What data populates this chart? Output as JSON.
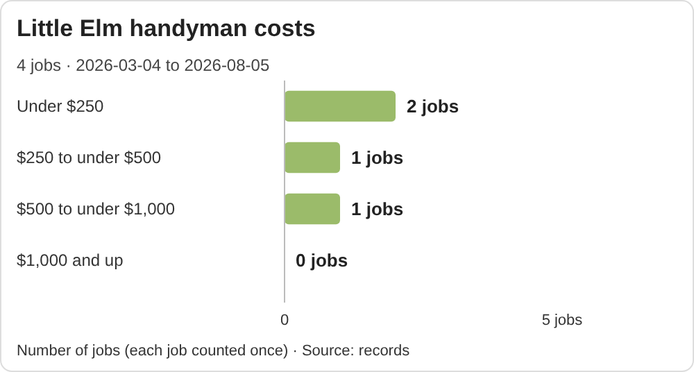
{
  "chart_data": {
    "type": "bar",
    "orientation": "horizontal",
    "title": "Little Elm handyman costs",
    "subtitle": "4 jobs · 2026-03-04 to 2026-08-05",
    "categories": [
      "Under $250",
      "$250 to under $500",
      "$500 to under $1,000",
      "$1,000 and up"
    ],
    "values": [
      2,
      1,
      1,
      0
    ],
    "color": "#9bbb6a",
    "value_labels": [
      "2 jobs",
      "1 jobs",
      "1 jobs",
      "0 jobs"
    ],
    "xlim": [
      0,
      5
    ],
    "xticks": [
      0,
      {
        "value": 5,
        "label": "5 jobs"
      }
    ],
    "grid": false,
    "annotations": [
      "Number of jobs (each job counted once) · Source: records"
    ]
  }
}
